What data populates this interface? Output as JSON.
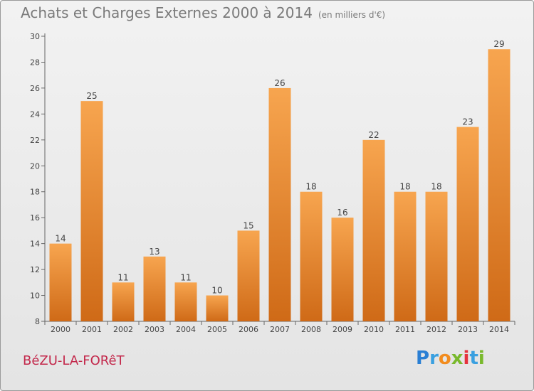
{
  "title": "Achats et Charges Externes 2000 à 2014",
  "unit": "(en milliers d'€)",
  "commune": "BéZU-LA-FORêT",
  "logo": {
    "letters": [
      "P",
      "r",
      "o",
      "x",
      "i",
      "t",
      "i"
    ],
    "colors": [
      "#2a7fd4",
      "#3aa0e0",
      "#f28c1e",
      "#79b92c",
      "#e5323e",
      "#3aa0e0",
      "#79b92c"
    ]
  },
  "colors": {
    "bar_top": "#f7a54f",
    "bar_bottom": "#cf6a17",
    "axis": "#666666",
    "text": "#444444"
  },
  "chart_data": {
    "type": "bar",
    "categories": [
      "2000",
      "2001",
      "2002",
      "2003",
      "2004",
      "2005",
      "2006",
      "2007",
      "2008",
      "2009",
      "2010",
      "2011",
      "2012",
      "2013",
      "2014"
    ],
    "values": [
      14,
      25,
      11,
      13,
      11,
      10,
      15,
      26,
      18,
      16,
      22,
      18,
      18,
      23,
      29
    ],
    "ylim": [
      8,
      30
    ],
    "yticks": [
      8,
      10,
      12,
      14,
      16,
      18,
      20,
      22,
      24,
      26,
      28,
      30
    ],
    "grid": false,
    "xlabel": "",
    "ylabel": ""
  }
}
